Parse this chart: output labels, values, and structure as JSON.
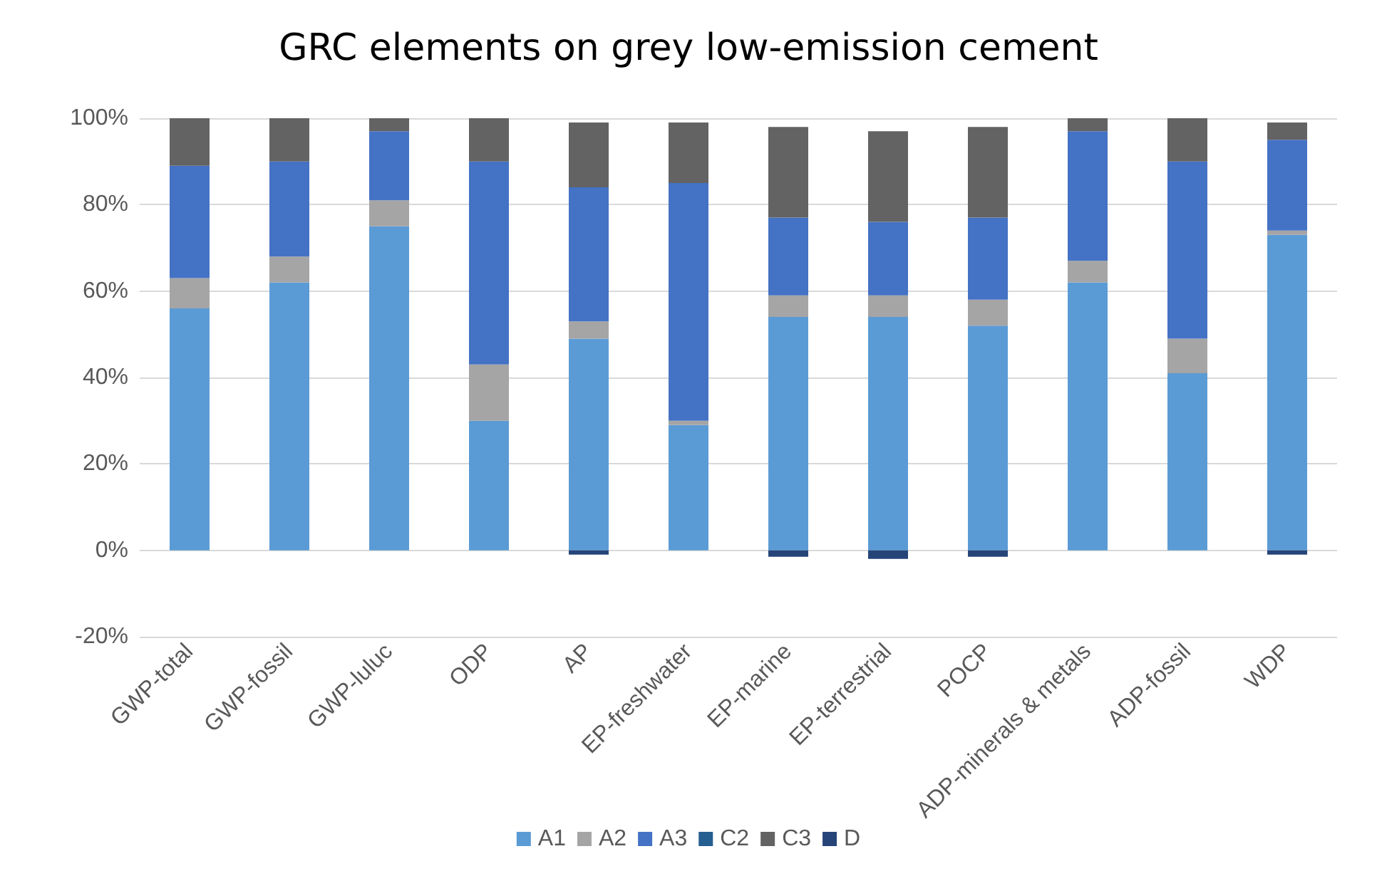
{
  "chart_data": {
    "type": "bar",
    "title": "GRC elements on grey low-emission cement",
    "stacked": true,
    "grid": "y",
    "legend": "bottom",
    "categories": [
      "GWP-total",
      "GWP-fossil",
      "GWP-luluc",
      "ODP",
      "AP",
      "EP-freshwater",
      "EP-marine",
      "EP-terrestrial",
      "POCP",
      "ADP-minerals & metals",
      "ADP-fossil",
      "WDP"
    ],
    "ylim": [
      -20,
      100
    ],
    "yticks": [
      {
        "value": -20,
        "label": "-20%"
      },
      {
        "value": 0,
        "label": "0%"
      },
      {
        "value": 20,
        "label": "20%"
      },
      {
        "value": 40,
        "label": "40%"
      },
      {
        "value": 60,
        "label": "60%"
      },
      {
        "value": 80,
        "label": "80%"
      },
      {
        "value": 100,
        "label": "100%"
      }
    ],
    "series": [
      {
        "name": "A1",
        "color": "#5b9bd5",
        "values": [
          56,
          62,
          75,
          30,
          49,
          29,
          54,
          54,
          52,
          62,
          41,
          73
        ]
      },
      {
        "name": "A2",
        "color": "#a5a5a5",
        "values": [
          7,
          6,
          6,
          13,
          4,
          1,
          5,
          5,
          6,
          5,
          8,
          1
        ]
      },
      {
        "name": "A3",
        "color": "#4472c4",
        "values": [
          26,
          22,
          16,
          47,
          31,
          55,
          18,
          17,
          19,
          30,
          41,
          21
        ]
      },
      {
        "name": "C2",
        "color": "#255e91",
        "values": [
          0,
          0,
          0,
          0,
          0,
          0,
          0,
          0,
          0,
          0,
          0,
          0
        ]
      },
      {
        "name": "C3",
        "color": "#636363",
        "values": [
          11,
          10,
          3,
          10,
          15,
          14,
          21,
          21,
          21,
          3,
          10,
          4
        ]
      },
      {
        "name": "D",
        "color": "#264478",
        "values": [
          0,
          0,
          0,
          0,
          -1,
          0,
          -1.5,
          -2,
          -1.5,
          0,
          0,
          -1
        ]
      }
    ]
  }
}
